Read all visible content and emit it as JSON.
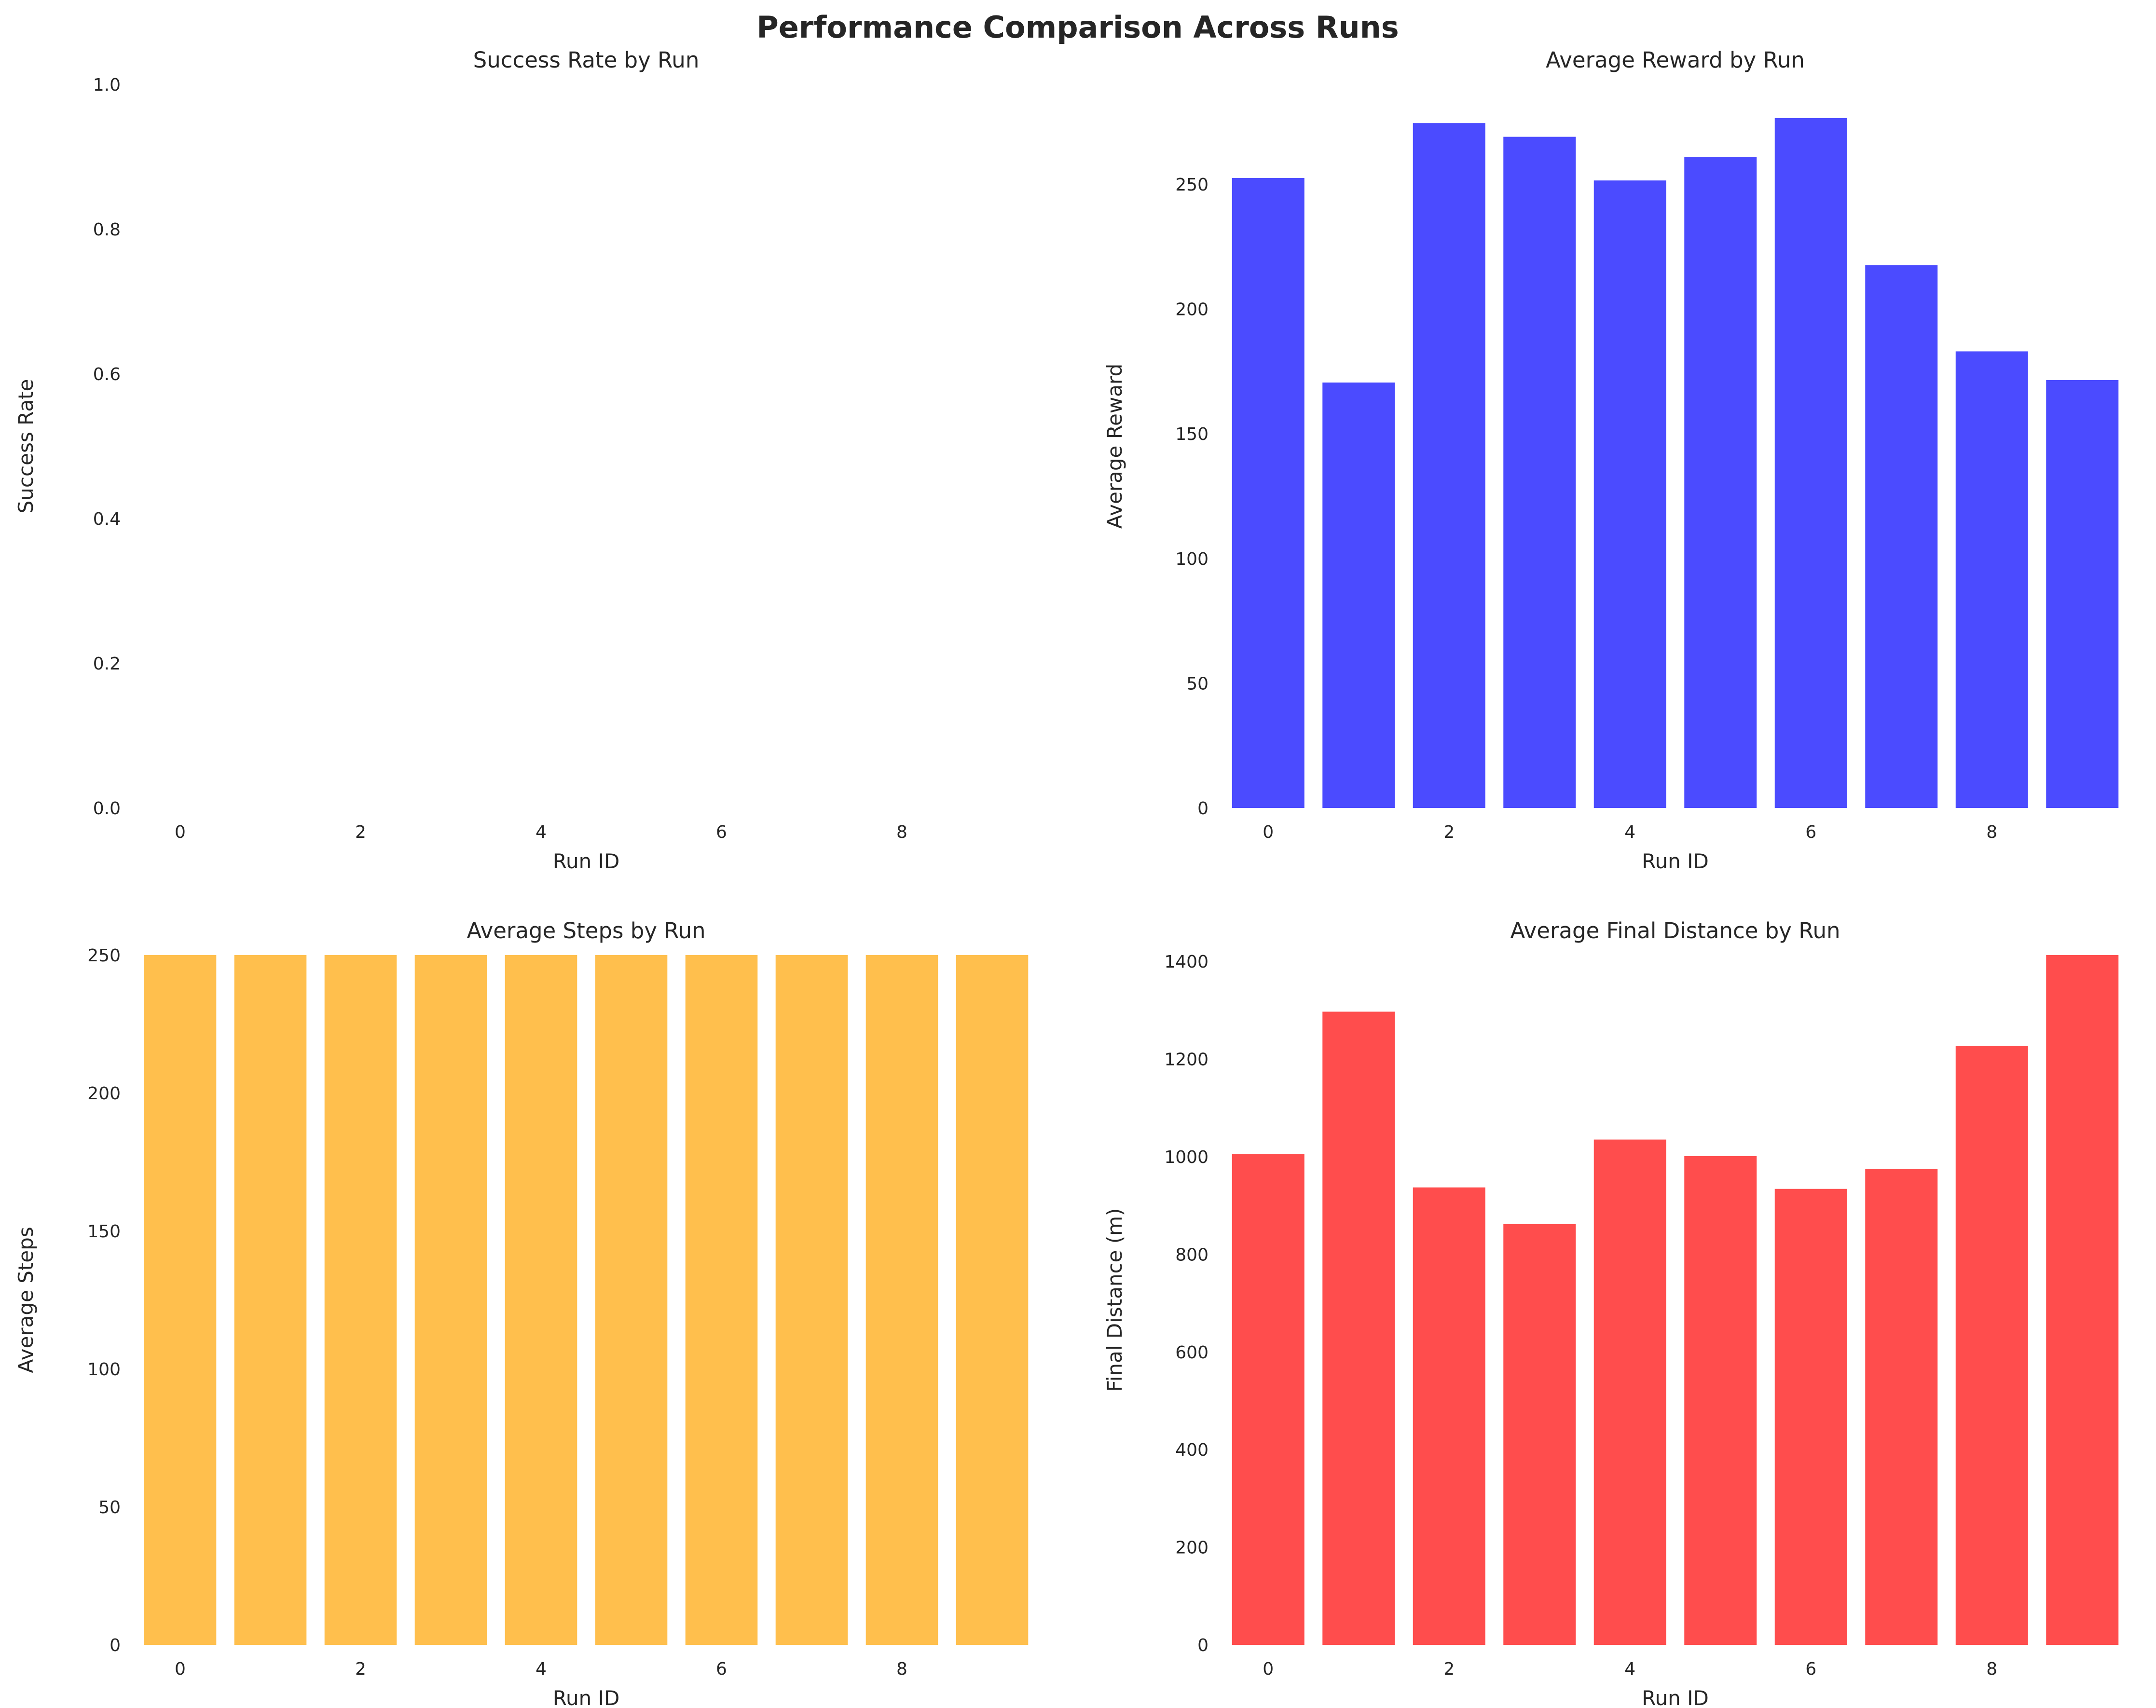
{
  "figure": {
    "title": "Performance Comparison Across Runs"
  },
  "chart_data": [
    {
      "type": "bar",
      "title": "Success Rate by Run",
      "xlabel": "Run ID",
      "ylabel": "Success Rate",
      "x": [
        0,
        1,
        2,
        3,
        4,
        5,
        6,
        7,
        8,
        9
      ],
      "values": [
        0,
        0,
        0,
        0,
        0,
        0,
        0,
        0,
        0,
        0
      ],
      "xticks": [
        0,
        2,
        4,
        6,
        8
      ],
      "yticks": [
        "0.0",
        "0.2",
        "0.4",
        "0.6",
        "0.8",
        "1.0"
      ],
      "ylim": [
        0,
        1
      ],
      "color": "#2ca02c",
      "grid": false
    },
    {
      "type": "bar",
      "title": "Average Reward by Run",
      "xlabel": "Run ID",
      "ylabel": "Average Reward",
      "x": [
        0,
        1,
        2,
        3,
        4,
        5,
        6,
        7,
        8,
        9
      ],
      "values": [
        252.5,
        170.5,
        274.5,
        269,
        251.5,
        261,
        276.5,
        217.5,
        183,
        171.5
      ],
      "xticks": [
        0,
        2,
        4,
        6,
        8
      ],
      "yticks": [
        "0",
        "50",
        "100",
        "150",
        "200",
        "250"
      ],
      "ylim": [
        0,
        290
      ],
      "color": "#4b4bff",
      "grid": false
    },
    {
      "type": "bar",
      "title": "Average Steps by Run",
      "xlabel": "Run ID",
      "ylabel": "Average Steps",
      "x": [
        0,
        1,
        2,
        3,
        4,
        5,
        6,
        7,
        8,
        9
      ],
      "values": [
        250,
        250,
        250,
        250,
        250,
        250,
        250,
        250,
        250,
        250
      ],
      "xticks": [
        0,
        2,
        4,
        6,
        8
      ],
      "yticks": [
        "0",
        "50",
        "100",
        "150",
        "200",
        "250"
      ],
      "ylim": [
        0,
        250
      ],
      "color": "#ffbf4d",
      "grid": false
    },
    {
      "type": "bar",
      "title": "Average Final Distance by Run",
      "xlabel": "Run ID",
      "ylabel": "Final Distance (m)",
      "x": [
        0,
        1,
        2,
        3,
        4,
        5,
        6,
        7,
        8,
        9
      ],
      "values": [
        1005,
        1297,
        937,
        862,
        1035,
        1001,
        934,
        975,
        1227,
        1413
      ],
      "xticks": [
        0,
        2,
        4,
        6,
        8
      ],
      "yticks": [
        "0",
        "200",
        "400",
        "600",
        "800",
        "1000",
        "1200",
        "1400"
      ],
      "ylim": [
        0,
        1413
      ],
      "color": "#ff4d4d",
      "grid": false
    }
  ]
}
